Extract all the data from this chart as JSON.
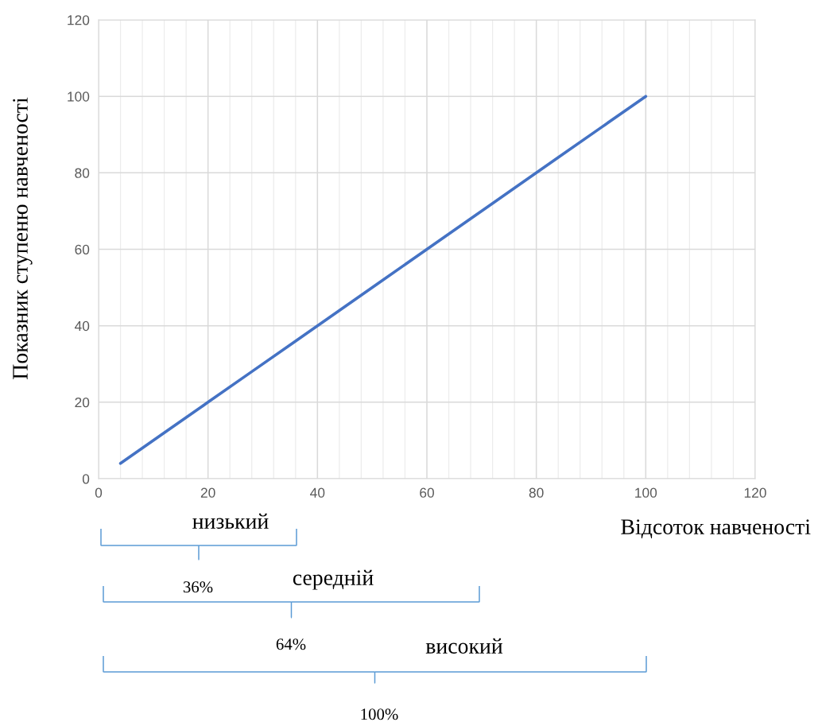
{
  "chart_data": {
    "type": "line",
    "xlabel": "Відсоток навченості",
    "ylabel": "Показник ступеню навченості",
    "x": [
      4,
      12,
      20,
      28,
      36,
      44,
      52,
      60,
      68,
      76,
      84,
      92,
      100
    ],
    "series": [
      {
        "color": "#4472c4",
        "values": [
          4,
          12,
          20,
          28,
          36,
          44,
          52,
          60,
          68,
          76,
          84,
          92,
          100
        ]
      }
    ],
    "xlim": [
      0,
      120
    ],
    "xticks": [
      0,
      20,
      40,
      60,
      80,
      100,
      120
    ],
    "ylim": [
      0,
      120
    ],
    "yticks": [
      0,
      20,
      40,
      60,
      80,
      100,
      120
    ],
    "grid": true,
    "legend": false,
    "marker": "none",
    "line_style": "solid",
    "annotations": [
      "низький",
      "36%",
      "середній",
      "64%",
      "високий",
      "100%"
    ]
  }
}
